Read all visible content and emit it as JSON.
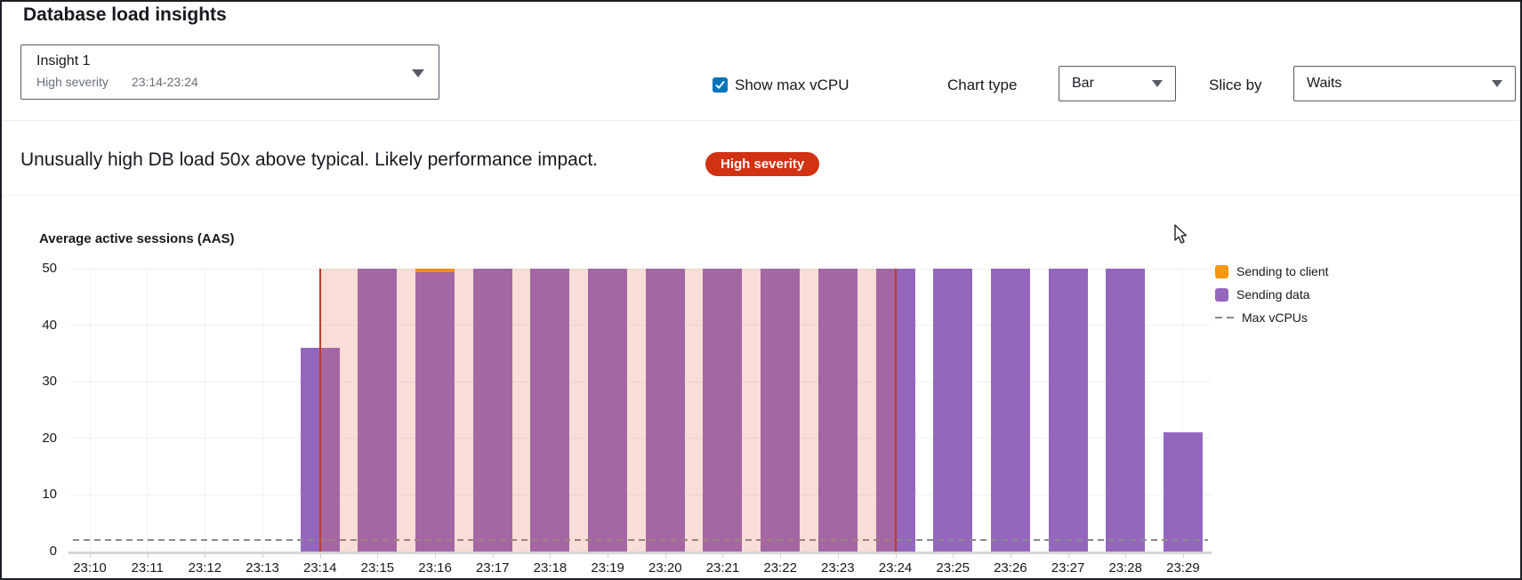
{
  "page": {
    "title": "Database load insights"
  },
  "insight_selector": {
    "name": "Insight 1",
    "severity": "High severity",
    "time_range": "23:14-23:24"
  },
  "controls": {
    "show_max_vcpu_label": "Show max vCPU",
    "show_max_vcpu_checked": true,
    "checkbox_color": "#0073bb",
    "chart_type_label": "Chart type",
    "chart_type_value": "Bar",
    "slice_by_label": "Slice by",
    "slice_by_value": "Waits"
  },
  "alert": {
    "message": "Unusually high DB load 50x above typical. Likely performance impact.",
    "badge": "High severity",
    "badge_color": "#d13212"
  },
  "chart_data": {
    "type": "bar",
    "stacked": true,
    "title": "Average active sessions (AAS)",
    "categories": [
      "23:10",
      "23:11",
      "23:12",
      "23:13",
      "23:14",
      "23:15",
      "23:16",
      "23:17",
      "23:18",
      "23:19",
      "23:20",
      "23:21",
      "23:22",
      "23:23",
      "23:24",
      "23:25",
      "23:26",
      "23:27",
      "23:28",
      "23:29"
    ],
    "series": [
      {
        "name": "Sending to client",
        "color": "#f5980d",
        "values": [
          0,
          0,
          0,
          0,
          0,
          0,
          0.6,
          0,
          0,
          0,
          0,
          0,
          0,
          0,
          0,
          0,
          0,
          0,
          0,
          0
        ]
      },
      {
        "name": "Sending data",
        "color": "#9467bd",
        "values": [
          0,
          0,
          0,
          0,
          36,
          50,
          49.4,
          50,
          50,
          50,
          50,
          50,
          50,
          50,
          50,
          50,
          50,
          50,
          50,
          21
        ]
      }
    ],
    "max_vcpus": {
      "label": "Max vCPUs",
      "value": 2
    },
    "ylim": [
      0,
      50
    ],
    "yticks": [
      0,
      10,
      20,
      30,
      40,
      50
    ],
    "ylabel": "Average active sessions (AAS)",
    "xlabel": "",
    "grid": true,
    "legend_position": "right",
    "highlight_band": {
      "start": "23:14",
      "end": "23:24",
      "band_color": "rgba(224,106,74,0.22)",
      "line_color": "#c0392b"
    }
  }
}
